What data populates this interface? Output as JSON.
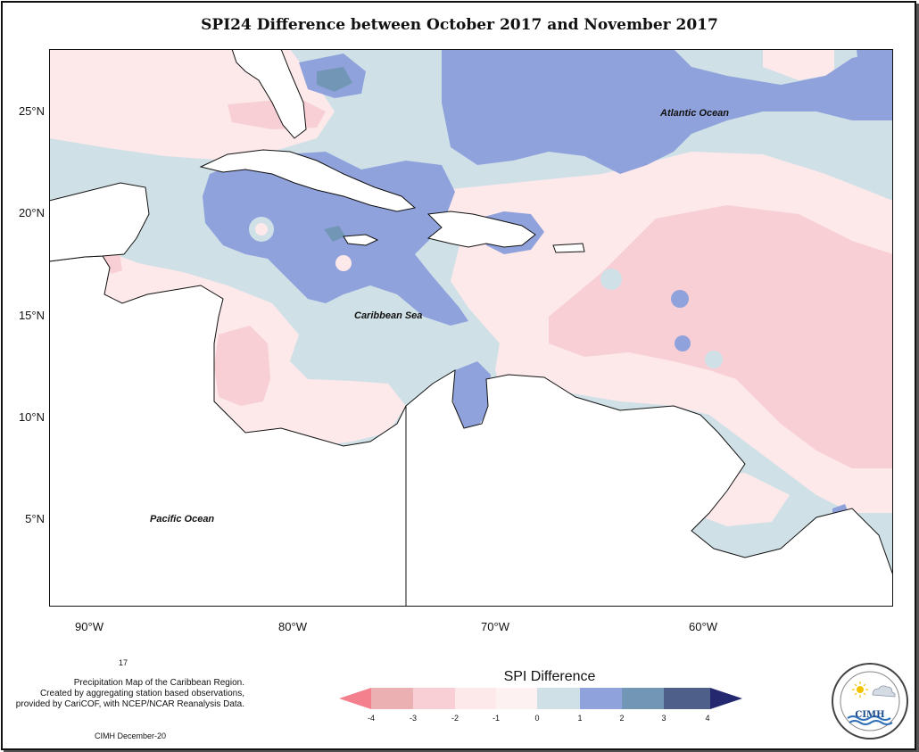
{
  "title": "SPI24 Difference between October 2017 and November 2017",
  "map": {
    "lat_labels": [
      "25°N",
      "20°N",
      "15°N",
      "10°N",
      "5°N"
    ],
    "lon_labels": [
      "90°W",
      "80°W",
      "70°W",
      "60°W"
    ],
    "place_labels": {
      "atlantic": "Atlantic Ocean",
      "caribbean": "Caribbean Sea",
      "pacific": "Pacific Ocean"
    },
    "colors": {
      "neg4": "#f3808c",
      "neg3": "#ebb0b2",
      "neg2": "#f3cbd1",
      "neg1": "#fde8ea",
      "pos0": "#cfe1e7",
      "pos1": "#8fa4dc",
      "pos2": "#7295b7",
      "pos3": "#4e5f8a",
      "pos4": "#23286f",
      "land": "#ffffff"
    }
  },
  "footer": {
    "small_number": "17",
    "caption_lines": [
      "Precipitation Map of the Caribbean Region.",
      "Created by aggregating station based observations,",
      "provided by CariCOF, with NCEP/NCAR Reanalysis Data."
    ],
    "credit": "CIMH December-20"
  },
  "legend": {
    "title": "SPI Difference",
    "ticks": [
      "-4",
      "-3",
      "-2",
      "-1",
      "0",
      "1",
      "2",
      "3",
      "4"
    ]
  },
  "logo": {
    "text": "CIMH"
  }
}
